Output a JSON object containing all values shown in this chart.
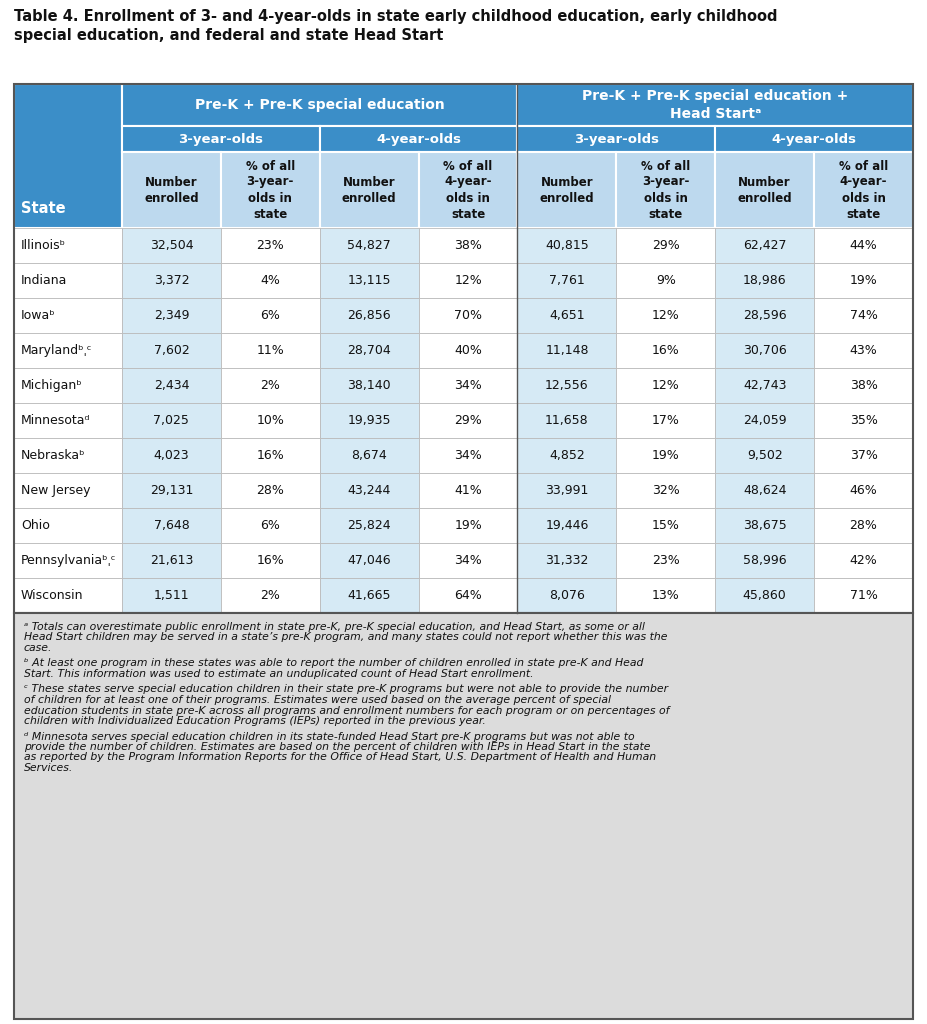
{
  "title_line1": "Table 4. Enrollment of 3- and 4-year-olds in state early childhood education, early childhood",
  "title_line2": "special education, and federal and state Head Start",
  "col_header_row1_left": "Pre-K + Pre-K special education",
  "col_header_row1_right": "Pre-K + Pre-K special education +\nHead Startᵃ",
  "col_header_row2": [
    "3-year-olds",
    "4-year-olds",
    "3-year-olds",
    "4-year-olds"
  ],
  "col_header_row3": [
    "Number\nenrolled",
    "% of all\n3-year-\nolds in\nstate",
    "Number\nenrolled",
    "% of all\n4-year-\nolds in\nstate",
    "Number\nenrolled",
    "% of all\n3-year-\nolds in\nstate",
    "Number\nenrolled",
    "% of all\n4-year-\nolds in\nstate"
  ],
  "state_header": "State",
  "state_names": [
    "Illinoisᵇ",
    "Indiana",
    "Iowaᵇ",
    "Marylandᵇˌᶜ",
    "Michiganᵇ",
    "Minnesotaᵈ",
    "Nebraskaᵇ",
    "New Jersey",
    "Ohio",
    "Pennsylvaniaᵇˌᶜ",
    "Wisconsin"
  ],
  "data": [
    [
      "32,504",
      "23%",
      "54,827",
      "38%",
      "40,815",
      "29%",
      "62,427",
      "44%"
    ],
    [
      "3,372",
      "4%",
      "13,115",
      "12%",
      "7,761",
      "9%",
      "18,986",
      "19%"
    ],
    [
      "2,349",
      "6%",
      "26,856",
      "70%",
      "4,651",
      "12%",
      "28,596",
      "74%"
    ],
    [
      "7,602",
      "11%",
      "28,704",
      "40%",
      "11,148",
      "16%",
      "30,706",
      "43%"
    ],
    [
      "2,434",
      "2%",
      "38,140",
      "34%",
      "12,556",
      "12%",
      "42,743",
      "38%"
    ],
    [
      "7,025",
      "10%",
      "19,935",
      "29%",
      "11,658",
      "17%",
      "24,059",
      "35%"
    ],
    [
      "4,023",
      "16%",
      "8,674",
      "34%",
      "4,852",
      "19%",
      "9,502",
      "37%"
    ],
    [
      "29,131",
      "28%",
      "43,244",
      "41%",
      "33,991",
      "32%",
      "48,624",
      "46%"
    ],
    [
      "7,648",
      "6%",
      "25,824",
      "19%",
      "19,446",
      "15%",
      "38,675",
      "28%"
    ],
    [
      "21,613",
      "16%",
      "47,046",
      "34%",
      "31,332",
      "23%",
      "58,996",
      "42%"
    ],
    [
      "1,511",
      "2%",
      "41,665",
      "64%",
      "8,076",
      "13%",
      "45,860",
      "71%"
    ]
  ],
  "footnotes": [
    [
      "ᵃ",
      "Totals can overestimate public enrollment in state pre-K, pre-K special education, and Head Start, as some or all Head Start children may be served in a state’s pre-K program, and many states could not report whether this was the case."
    ],
    [
      "ᵇ",
      "At least one program in these states was able to report the number of children enrolled in state pre-K and Head Start. This information was used to estimate an unduplicated count of Head Start enrollment."
    ],
    [
      "ᶜ",
      "These states serve special education children in their state pre-K programs but were not able to provide the number of children for at least one of their programs. Estimates were used based on the average percent of special education students in state pre-K across all programs and enrollment numbers for each program or on percentages of children with Individualized Education Programs (IEPs) reported in the previous year."
    ],
    [
      "ᵈ",
      "Minnesota serves special education children in its state-funded Head Start pre-K programs but was not able to provide the number of children. Estimates are based on the percent of children with IEPs in Head Start in the state as reported by the Program Information Reports for the Office of Head Start, U.S. Department of Health and Human Services."
    ]
  ],
  "blue_dark": "#3B8EC8",
  "blue_light": "#BDD9EE",
  "footnote_bg": "#DCDCDC",
  "border_color": "#7BAABF",
  "white": "#FFFFFF",
  "black": "#111111",
  "data_blue": "#D6EAF5",
  "data_white": "#FFFFFF",
  "row_border": "#BBBBBB"
}
